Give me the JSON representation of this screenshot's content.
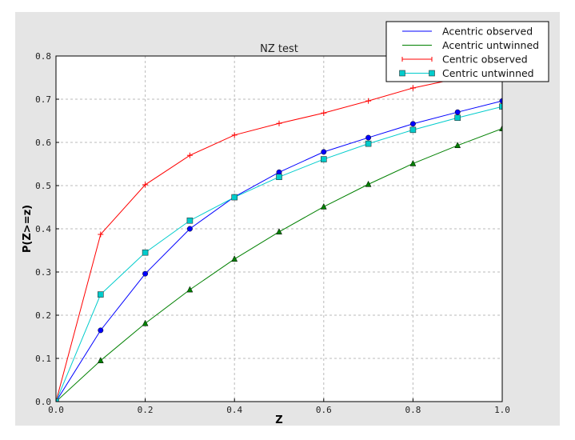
{
  "chart_data": {
    "type": "line",
    "title": "NZ test",
    "xlabel": "Z",
    "ylabel": "P(Z>=z)",
    "xlim": [
      0,
      1.0
    ],
    "ylim": [
      0,
      0.8
    ],
    "grid": true,
    "legend_position": "top-right",
    "xticks": [
      "0.0",
      "0.2",
      "0.4",
      "0.6",
      "0.8",
      "1.0"
    ],
    "yticks": [
      "0.0",
      "0.1",
      "0.2",
      "0.3",
      "0.4",
      "0.5",
      "0.6",
      "0.7",
      "0.8"
    ],
    "x": [
      0,
      0.1,
      0.2,
      0.3,
      0.4,
      0.5,
      0.6,
      0.7,
      0.8,
      0.9,
      1.0
    ],
    "series": [
      {
        "name": "Acentric observed",
        "color": "#0000ff",
        "marker": "circle",
        "values": [
          0,
          0.165,
          0.296,
          0.4,
          0.474,
          0.531,
          0.578,
          0.611,
          0.643,
          0.67,
          0.696
        ]
      },
      {
        "name": "Acentric untwinned",
        "color": "#008000",
        "marker": "triangle",
        "values": [
          0,
          0.095,
          0.181,
          0.259,
          0.33,
          0.393,
          0.451,
          0.503,
          0.551,
          0.593,
          0.632
        ]
      },
      {
        "name": "Centric observed",
        "color": "#ff0000",
        "marker": "plus",
        "values": [
          0,
          0.387,
          0.502,
          0.57,
          0.617,
          0.644,
          0.668,
          0.696,
          0.726,
          0.748,
          0.77
        ]
      },
      {
        "name": "Centric untwinned",
        "color": "#00cccc",
        "marker": "square",
        "values": [
          0,
          0.248,
          0.345,
          0.419,
          0.473,
          0.52,
          0.561,
          0.597,
          0.629,
          0.657,
          0.683
        ]
      }
    ]
  }
}
